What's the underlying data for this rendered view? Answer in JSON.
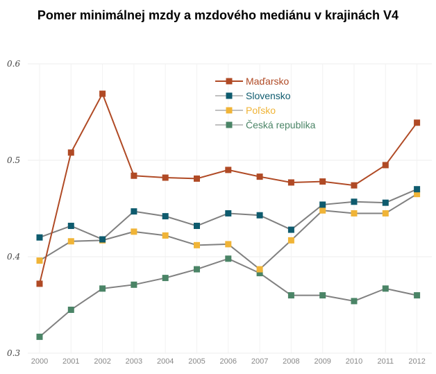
{
  "chart_data": {
    "type": "line",
    "title": "Pomer minimálnej mzdy a mzdového mediánu v krajinách V4",
    "xlabel": "",
    "ylabel": "",
    "x": [
      "2000",
      "2001",
      "2002",
      "2003",
      "2004",
      "2005",
      "2006",
      "2007",
      "2008",
      "2009",
      "2010",
      "2011",
      "2012"
    ],
    "ylim": [
      0.3,
      0.6
    ],
    "yticks": [
      "0.3",
      "0.4",
      "0.5",
      "0.6"
    ],
    "grid": true,
    "legend_position": "top-center",
    "series": [
      {
        "name": "Maďarsko",
        "color": "#b04a25",
        "values": [
          0.372,
          0.508,
          0.569,
          0.484,
          0.482,
          0.481,
          0.49,
          0.483,
          0.477,
          0.478,
          0.474,
          0.495,
          0.539
        ]
      },
      {
        "name": "Slovensko",
        "color": "#0e5b6e",
        "values": [
          0.42,
          0.432,
          0.418,
          0.447,
          0.442,
          0.432,
          0.445,
          0.443,
          0.428,
          0.454,
          0.457,
          0.456,
          0.47
        ]
      },
      {
        "name": "Poľsko",
        "color": "#f0b437",
        "values": [
          0.396,
          0.416,
          0.417,
          0.426,
          0.422,
          0.412,
          0.413,
          0.387,
          0.417,
          0.448,
          0.445,
          0.445,
          0.465
        ]
      },
      {
        "name": "Česká republika",
        "color": "#4a8466",
        "values": [
          0.317,
          0.345,
          0.367,
          0.371,
          0.378,
          0.387,
          0.398,
          0.383,
          0.36,
          0.36,
          0.354,
          0.367,
          0.36
        ]
      }
    ]
  }
}
